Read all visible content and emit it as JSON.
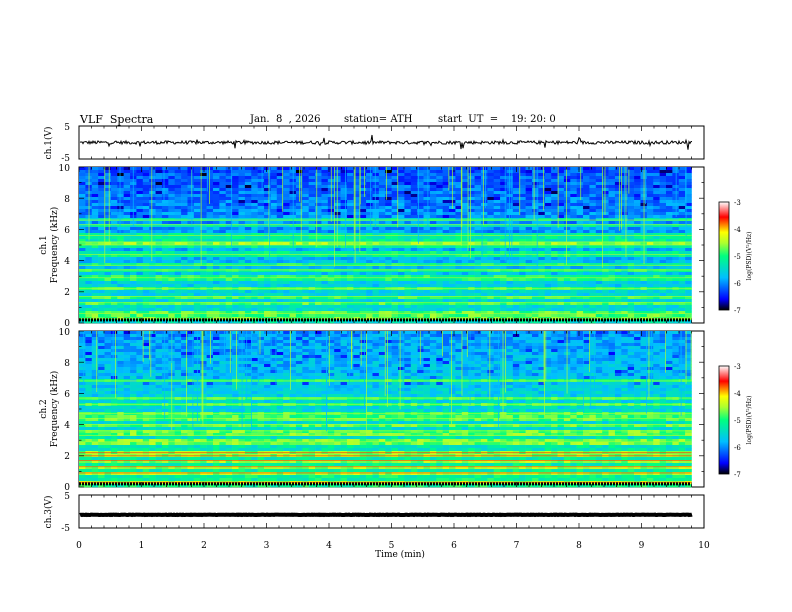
{
  "header": {
    "title": "VLF  Spectra",
    "date": "Jan.  8  , 2026",
    "station": "station= ATH",
    "start": "start  UT  =    19: 20: 0"
  },
  "chart_data": [
    {
      "type": "line",
      "ylabel": "ch.1(V)",
      "ylim": [
        -5,
        5
      ],
      "yticks": [
        "5",
        "-5"
      ],
      "xlim": [
        0,
        10
      ],
      "description_values": {
        "baseline": 0,
        "noise_amplitude": 1
      }
    },
    {
      "type": "heatmap",
      "ylabel": "ch.1\nFrequency (kHz)",
      "ylabel_lines": [
        "ch.1",
        "Frequency (kHz)"
      ],
      "ylim": [
        0,
        10
      ],
      "yticks": [
        "0",
        "2",
        "4",
        "6",
        "8",
        "10"
      ],
      "xlim": [
        0,
        9.8
      ],
      "colorbar": {
        "label": "log(PSD)(V²/Hz)",
        "range": [
          -7,
          -3
        ],
        "ticks": [
          "-3",
          "-4",
          "-5",
          "-6",
          "-7"
        ]
      },
      "bands_khz": [
        0.3,
        0.6,
        1.3,
        1.7,
        2.2,
        2.9,
        3.4,
        3.7,
        4.4,
        5.0,
        5.2,
        5.6,
        6.3,
        6.6
      ]
    },
    {
      "type": "heatmap",
      "ylabel_lines": [
        "ch.2",
        "Frequency (kHz)"
      ],
      "ylim": [
        0,
        10
      ],
      "yticks": [
        "0",
        "2",
        "4",
        "6",
        "8",
        "10"
      ],
      "xlim": [
        0,
        9.8
      ],
      "colorbar": {
        "label": "log(PSD)(V²/Hz)",
        "range": [
          -7,
          -3
        ],
        "ticks": [
          "-3",
          "-4",
          "-5",
          "-6",
          "-7"
        ]
      },
      "bands_khz": [
        0.3,
        0.9,
        1.3,
        1.7,
        2.0,
        2.2,
        2.9,
        3.3,
        3.6,
        4.0,
        4.4,
        4.7,
        5.3,
        5.7,
        6.8
      ]
    },
    {
      "type": "line",
      "ylabel": "ch.3(V)",
      "ylim": [
        -5,
        5
      ],
      "yticks": [
        "5",
        "-5"
      ],
      "xlim": [
        0,
        10
      ],
      "description_values": {
        "baseline": -1,
        "noise_amplitude": 0.15
      }
    }
  ],
  "xaxis": {
    "label": "Time  (min)",
    "ticks": [
      "0",
      "1",
      "2",
      "3",
      "4",
      "5",
      "6",
      "7",
      "8",
      "9",
      "10"
    ],
    "xlim": [
      0,
      10
    ]
  },
  "colors": {
    "colormap": [
      "#000000",
      "#0000ff",
      "#00bfff",
      "#00ff7f",
      "#adff2f",
      "#ffff00",
      "#ff0000",
      "#ffffff"
    ]
  }
}
